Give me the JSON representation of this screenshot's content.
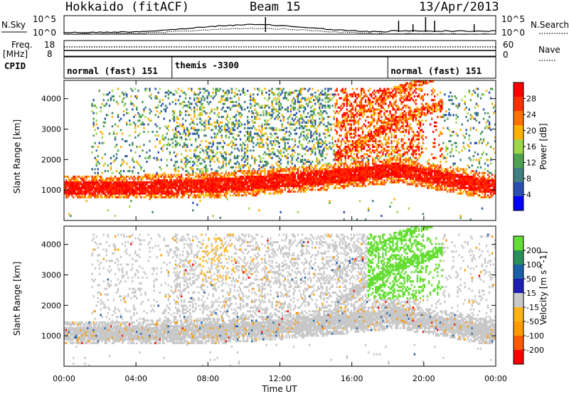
{
  "header": {
    "site": "Hokkaido (fitACF)",
    "beam": "Beam 15",
    "date": "13/Apr/2013"
  },
  "noise_panel": {
    "left_label": "N.Sky",
    "right_label": "N.Search",
    "left_ticks": [
      "10^5",
      "10^0"
    ],
    "right_ticks": [
      "10^5",
      "10^0"
    ]
  },
  "freq_panel": {
    "left_label_1": "Freq.",
    "left_label_2": "[MHz]",
    "right_label": "Nave",
    "left_ticks": [
      "18",
      "8"
    ],
    "right_ticks": [
      "60",
      "0"
    ]
  },
  "cpid_panel": {
    "label": "CPID",
    "segments": [
      {
        "start_hour": 0,
        "end_hour": 6,
        "name": "normal (fast) 151"
      },
      {
        "start_hour": 6,
        "end_hour": 18,
        "name": "themis -3300"
      },
      {
        "start_hour": 18,
        "end_hour": 24,
        "name": "normal (fast) 151"
      }
    ]
  },
  "axes": {
    "ylabel": "Slant Range [km]",
    "xlabel": "Time UT",
    "x_ticks": [
      "00:00",
      "04:00",
      "08:00",
      "12:00",
      "16:00",
      "20:00",
      "00:00"
    ],
    "y_ticks": [
      "1000",
      "2000",
      "3000",
      "4000"
    ]
  },
  "colors": {
    "power": [
      "#0000ff",
      "#2a4fb0",
      "#3f7f7f",
      "#4fa24f",
      "#9ed64a",
      "#ffb000",
      "#ff7000",
      "#ff3000",
      "#ff0000"
    ],
    "velocity_neg": [
      "#ff0000",
      "#ff5a00",
      "#ff9a00",
      "#ffb414"
    ],
    "velocity_grey": "#c8c8c8",
    "velocity_pos": [
      "#66dd33",
      "#2b8f5a",
      "#1a5fa8",
      "#1e1eb4"
    ]
  },
  "chart_data": [
    {
      "type": "heatmap",
      "name": "Power",
      "xlabel": "Time UT",
      "ylabel": "Slant Range [km]",
      "xlim_hours": [
        0,
        24
      ],
      "ylim_km": [
        0,
        4600
      ],
      "colorbar_label": "Power [dB]",
      "colorbar_ticks": [
        "4",
        "8",
        "12",
        "16",
        "20",
        "24",
        "28"
      ],
      "colorbar_range": [
        0,
        32
      ]
    },
    {
      "type": "heatmap",
      "name": "Velocity",
      "xlabel": "Time UT",
      "ylabel": "Slant Range [km]",
      "xlim_hours": [
        0,
        24
      ],
      "ylim_km": [
        0,
        4600
      ],
      "colorbar_label": "Velocity [m s^-1]",
      "colorbar_ticks": [
        "-200",
        "-100",
        "-50",
        "-15",
        "15",
        "50",
        "100",
        "200"
      ]
    }
  ]
}
